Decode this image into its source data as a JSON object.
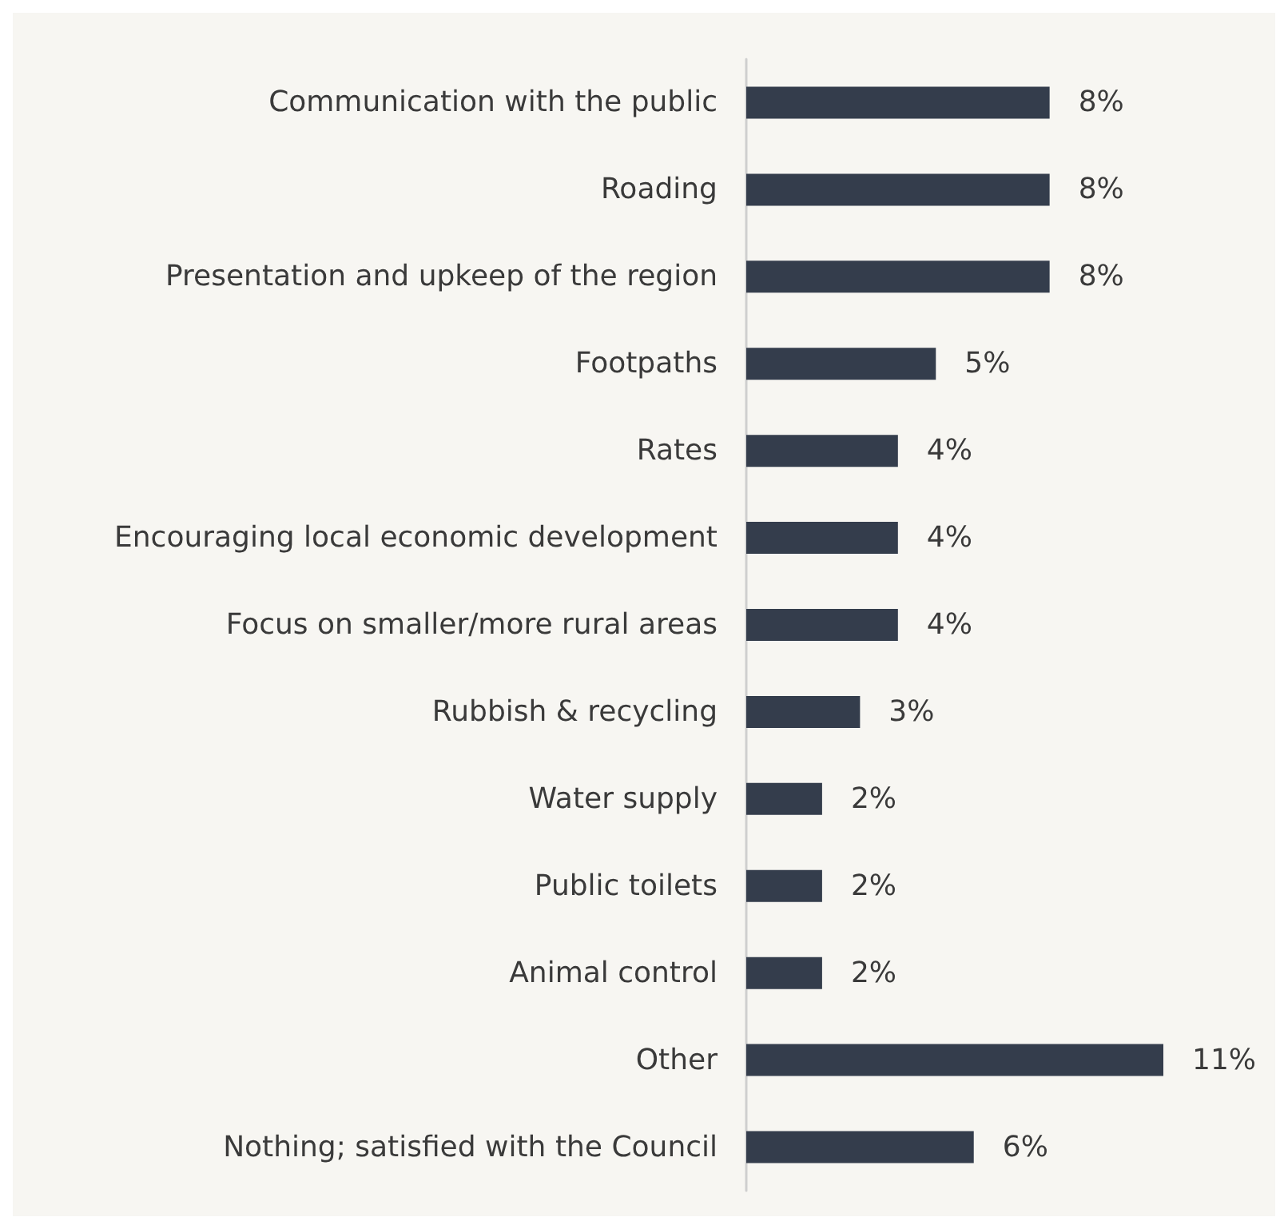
{
  "chart_data": {
    "type": "bar",
    "orientation": "horizontal",
    "categories": [
      "Communication with the public",
      "Roading",
      "Presentation and upkeep of the region",
      "Footpaths",
      "Rates",
      "Encouraging local economic development",
      "Focus on smaller/more rural areas",
      "Rubbish & recycling",
      "Water supply",
      "Public toilets",
      "Animal control",
      "Other",
      "Nothing; satisfied with the Council"
    ],
    "values": [
      8,
      8,
      8,
      5,
      4,
      4,
      4,
      3,
      2,
      2,
      2,
      11,
      6
    ],
    "value_labels": [
      "8%",
      "8%",
      "8%",
      "5%",
      "4%",
      "4%",
      "4%",
      "3%",
      "2%",
      "2%",
      "2%",
      "11%",
      "6%"
    ],
    "color": "#343d4c"
  }
}
